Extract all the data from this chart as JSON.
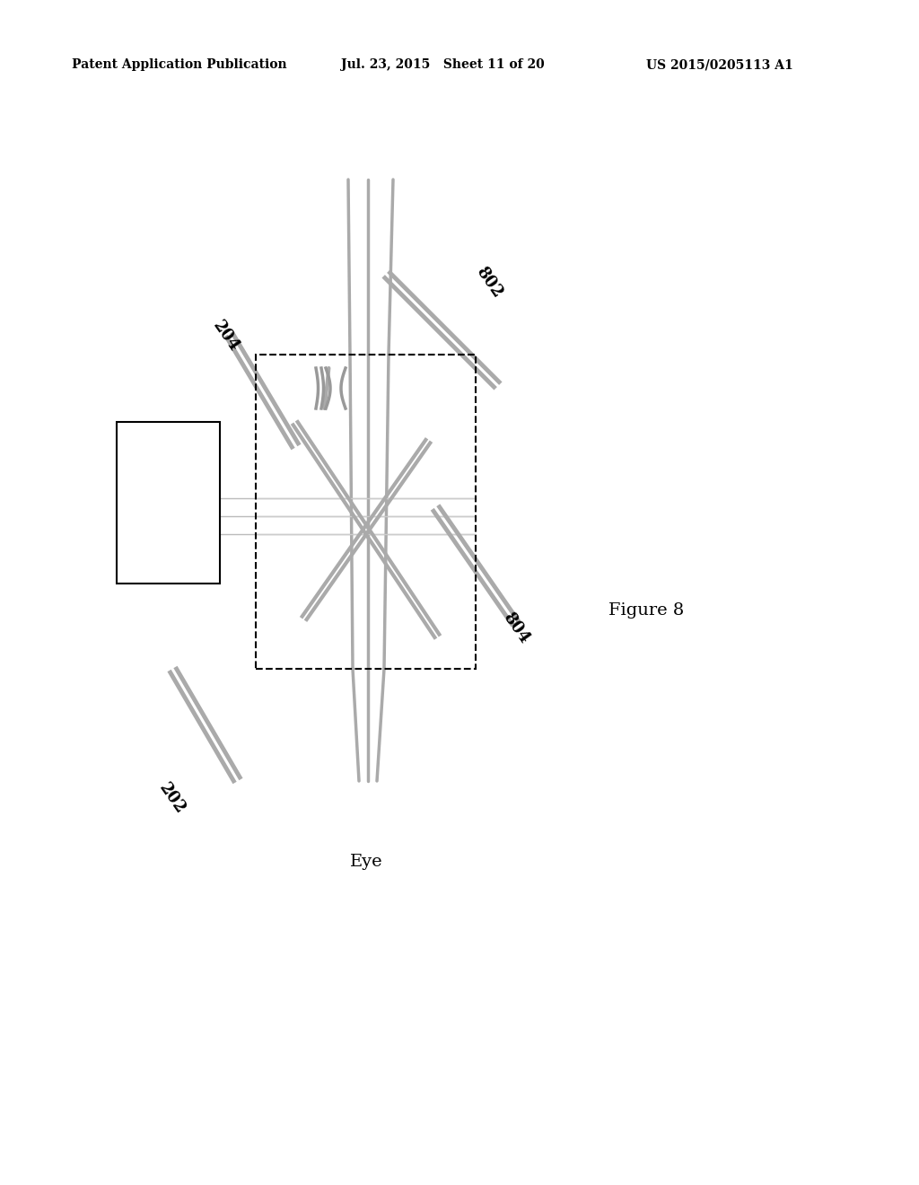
{
  "background_color": "#ffffff",
  "header_left": "Patent Application Publication",
  "header_center": "Jul. 23, 2015   Sheet 11 of 20",
  "header_right": "US 2015/0205113 A1",
  "figure_label": "Figure 8",
  "eye_label": "Eye",
  "label_202": "202",
  "label_204": "204",
  "label_802": "802",
  "label_804": "804",
  "line_color": "#888888",
  "thick_line_color": "#999999",
  "border_color": "#000000",
  "dashed_color": "#000000"
}
